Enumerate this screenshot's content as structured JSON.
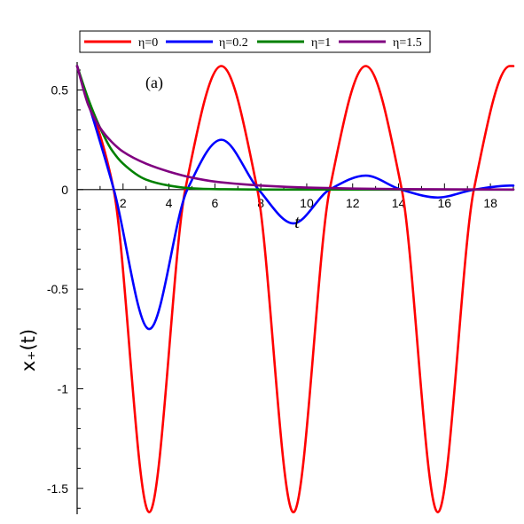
{
  "chart_data": {
    "type": "line",
    "title": "",
    "panel_label": "(a)",
    "xlabel": "t",
    "ylabel": "x₊(t)",
    "xlim": [
      0,
      19
    ],
    "ylim": [
      -1.63,
      0.64
    ],
    "x_ticks": [
      "2",
      "4",
      "6",
      "8",
      "10",
      "12",
      "14",
      "16",
      "18"
    ],
    "x_tick_values": [
      2,
      4,
      6,
      8,
      10,
      12,
      14,
      16,
      18
    ],
    "y_ticks": [
      "0.5",
      "0",
      "-0.5",
      "-1",
      "-1.5"
    ],
    "y_tick_values": [
      0.5,
      0,
      -0.5,
      -1,
      -1.5
    ],
    "grid": false,
    "legend_position": "top",
    "series": [
      {
        "name": "η=0",
        "color": "#ff0000",
        "x": [
          0,
          1.59,
          3.14,
          4.71,
          6.28,
          7.85,
          9.42,
          11.0,
          12.57,
          14.14,
          15.71,
          17.28,
          18.85,
          19.0
        ],
        "values": [
          0.62,
          0.0,
          -1.62,
          0.0,
          0.62,
          0.0,
          -1.62,
          0.0,
          0.62,
          0.0,
          -1.62,
          0.0,
          0.62,
          0.62
        ]
      },
      {
        "name": "η=0.2",
        "color": "#0000ff",
        "x": [
          0,
          1.6,
          3.14,
          4.8,
          6.28,
          7.9,
          9.42,
          11.0,
          12.57,
          14.1,
          15.71,
          17.3,
          18.85,
          19.0
        ],
        "values": [
          0.62,
          0.0,
          -0.7,
          0.0,
          0.25,
          0.0,
          -0.17,
          0.0,
          0.07,
          0.0,
          -0.04,
          0.0,
          0.02,
          0.02
        ]
      },
      {
        "name": "η=1",
        "color": "#008000",
        "x": [
          0,
          0.5,
          1.0,
          1.5,
          2.0,
          3.0,
          4.0,
          5.0,
          6.0,
          8.0,
          10.0,
          14.0,
          19.0
        ],
        "values": [
          0.62,
          0.45,
          0.31,
          0.2,
          0.13,
          0.05,
          0.02,
          0.006,
          0.002,
          0.0,
          0.0,
          0.0,
          0.0
        ]
      },
      {
        "name": "η=1.5",
        "color": "#800080",
        "x": [
          0,
          0.5,
          1.0,
          1.5,
          2.0,
          3.0,
          4.0,
          5.0,
          6.0,
          8.0,
          10.0,
          12.0,
          14.0,
          19.0
        ],
        "values": [
          0.62,
          0.42,
          0.31,
          0.24,
          0.19,
          0.13,
          0.09,
          0.06,
          0.04,
          0.02,
          0.01,
          0.005,
          0.002,
          0.0
        ]
      }
    ]
  }
}
